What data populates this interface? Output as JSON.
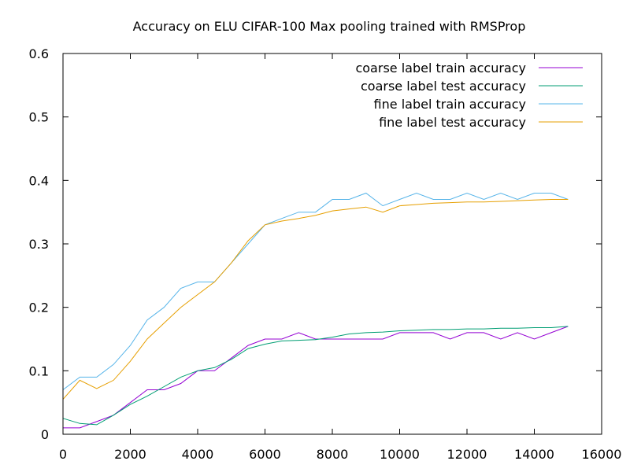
{
  "chart_data": {
    "type": "line",
    "title": "Accuracy on ELU CIFAR-100 Max pooling trained with RMSProp",
    "xlabel": "",
    "ylabel": "",
    "xlim": [
      0,
      16000
    ],
    "ylim": [
      0,
      0.6
    ],
    "xticks": [
      0,
      2000,
      4000,
      6000,
      8000,
      10000,
      12000,
      14000,
      16000
    ],
    "yticks": [
      0,
      0.1,
      0.2,
      0.3,
      0.4,
      0.5,
      0.6
    ],
    "xtick_labels": [
      "0",
      "2000",
      "4000",
      "6000",
      "8000",
      "10000",
      "12000",
      "14000",
      "16000"
    ],
    "ytick_labels": [
      "0",
      "0.1",
      "0.2",
      "0.3",
      "0.4",
      "0.5",
      "0.6"
    ],
    "grid": false,
    "legend_position": "top-right",
    "series": [
      {
        "name": "coarse label train accuracy",
        "color": "#9400d3",
        "x": [
          0,
          500,
          1000,
          1500,
          2000,
          2500,
          3000,
          3500,
          4000,
          4500,
          5000,
          5500,
          6000,
          6500,
          7000,
          7500,
          8000,
          8500,
          9000,
          9500,
          10000,
          10500,
          11000,
          11500,
          12000,
          12500,
          13000,
          13500,
          14000,
          14500,
          15000
        ],
        "values": [
          0.01,
          0.01,
          0.02,
          0.03,
          0.05,
          0.07,
          0.07,
          0.08,
          0.1,
          0.1,
          0.12,
          0.14,
          0.15,
          0.15,
          0.16,
          0.15,
          0.15,
          0.15,
          0.15,
          0.15,
          0.16,
          0.16,
          0.16,
          0.15,
          0.16,
          0.16,
          0.15,
          0.16,
          0.15,
          0.16,
          0.17
        ]
      },
      {
        "name": "coarse label test accuracy",
        "color": "#009e73",
        "x": [
          0,
          500,
          1000,
          1500,
          2000,
          2500,
          3000,
          3500,
          4000,
          4500,
          5000,
          5500,
          6000,
          6500,
          7000,
          7500,
          8000,
          8500,
          9000,
          9500,
          10000,
          10500,
          11000,
          11500,
          12000,
          12500,
          13000,
          13500,
          14000,
          14500,
          15000
        ],
        "values": [
          0.025,
          0.017,
          0.015,
          0.03,
          0.047,
          0.06,
          0.075,
          0.09,
          0.1,
          0.105,
          0.118,
          0.135,
          0.142,
          0.147,
          0.148,
          0.149,
          0.153,
          0.158,
          0.16,
          0.161,
          0.163,
          0.164,
          0.165,
          0.165,
          0.166,
          0.166,
          0.167,
          0.167,
          0.168,
          0.168,
          0.17
        ]
      },
      {
        "name": "fine label train accuracy",
        "color": "#56b4e9",
        "x": [
          0,
          500,
          1000,
          1500,
          2000,
          2500,
          3000,
          3500,
          4000,
          4500,
          5000,
          5500,
          6000,
          6500,
          7000,
          7500,
          8000,
          8500,
          9000,
          9500,
          10000,
          10500,
          11000,
          11500,
          12000,
          12500,
          13000,
          13500,
          14000,
          14500,
          15000
        ],
        "values": [
          0.07,
          0.09,
          0.09,
          0.11,
          0.14,
          0.18,
          0.2,
          0.23,
          0.24,
          0.24,
          0.27,
          0.3,
          0.33,
          0.34,
          0.35,
          0.35,
          0.37,
          0.37,
          0.38,
          0.36,
          0.37,
          0.38,
          0.37,
          0.37,
          0.38,
          0.37,
          0.38,
          0.37,
          0.38,
          0.38,
          0.37
        ]
      },
      {
        "name": "fine label test accuracy",
        "color": "#e69f00",
        "x": [
          0,
          500,
          1000,
          1500,
          2000,
          2500,
          3000,
          3500,
          4000,
          4500,
          5000,
          5500,
          6000,
          6500,
          7000,
          7500,
          8000,
          8500,
          9000,
          9500,
          10000,
          10500,
          11000,
          11500,
          12000,
          12500,
          13000,
          13500,
          14000,
          14500,
          15000
        ],
        "values": [
          0.055,
          0.085,
          0.072,
          0.085,
          0.115,
          0.15,
          0.175,
          0.2,
          0.22,
          0.24,
          0.27,
          0.305,
          0.33,
          0.336,
          0.34,
          0.345,
          0.352,
          0.355,
          0.358,
          0.35,
          0.36,
          0.362,
          0.364,
          0.365,
          0.366,
          0.366,
          0.367,
          0.368,
          0.369,
          0.37,
          0.37
        ]
      }
    ]
  }
}
